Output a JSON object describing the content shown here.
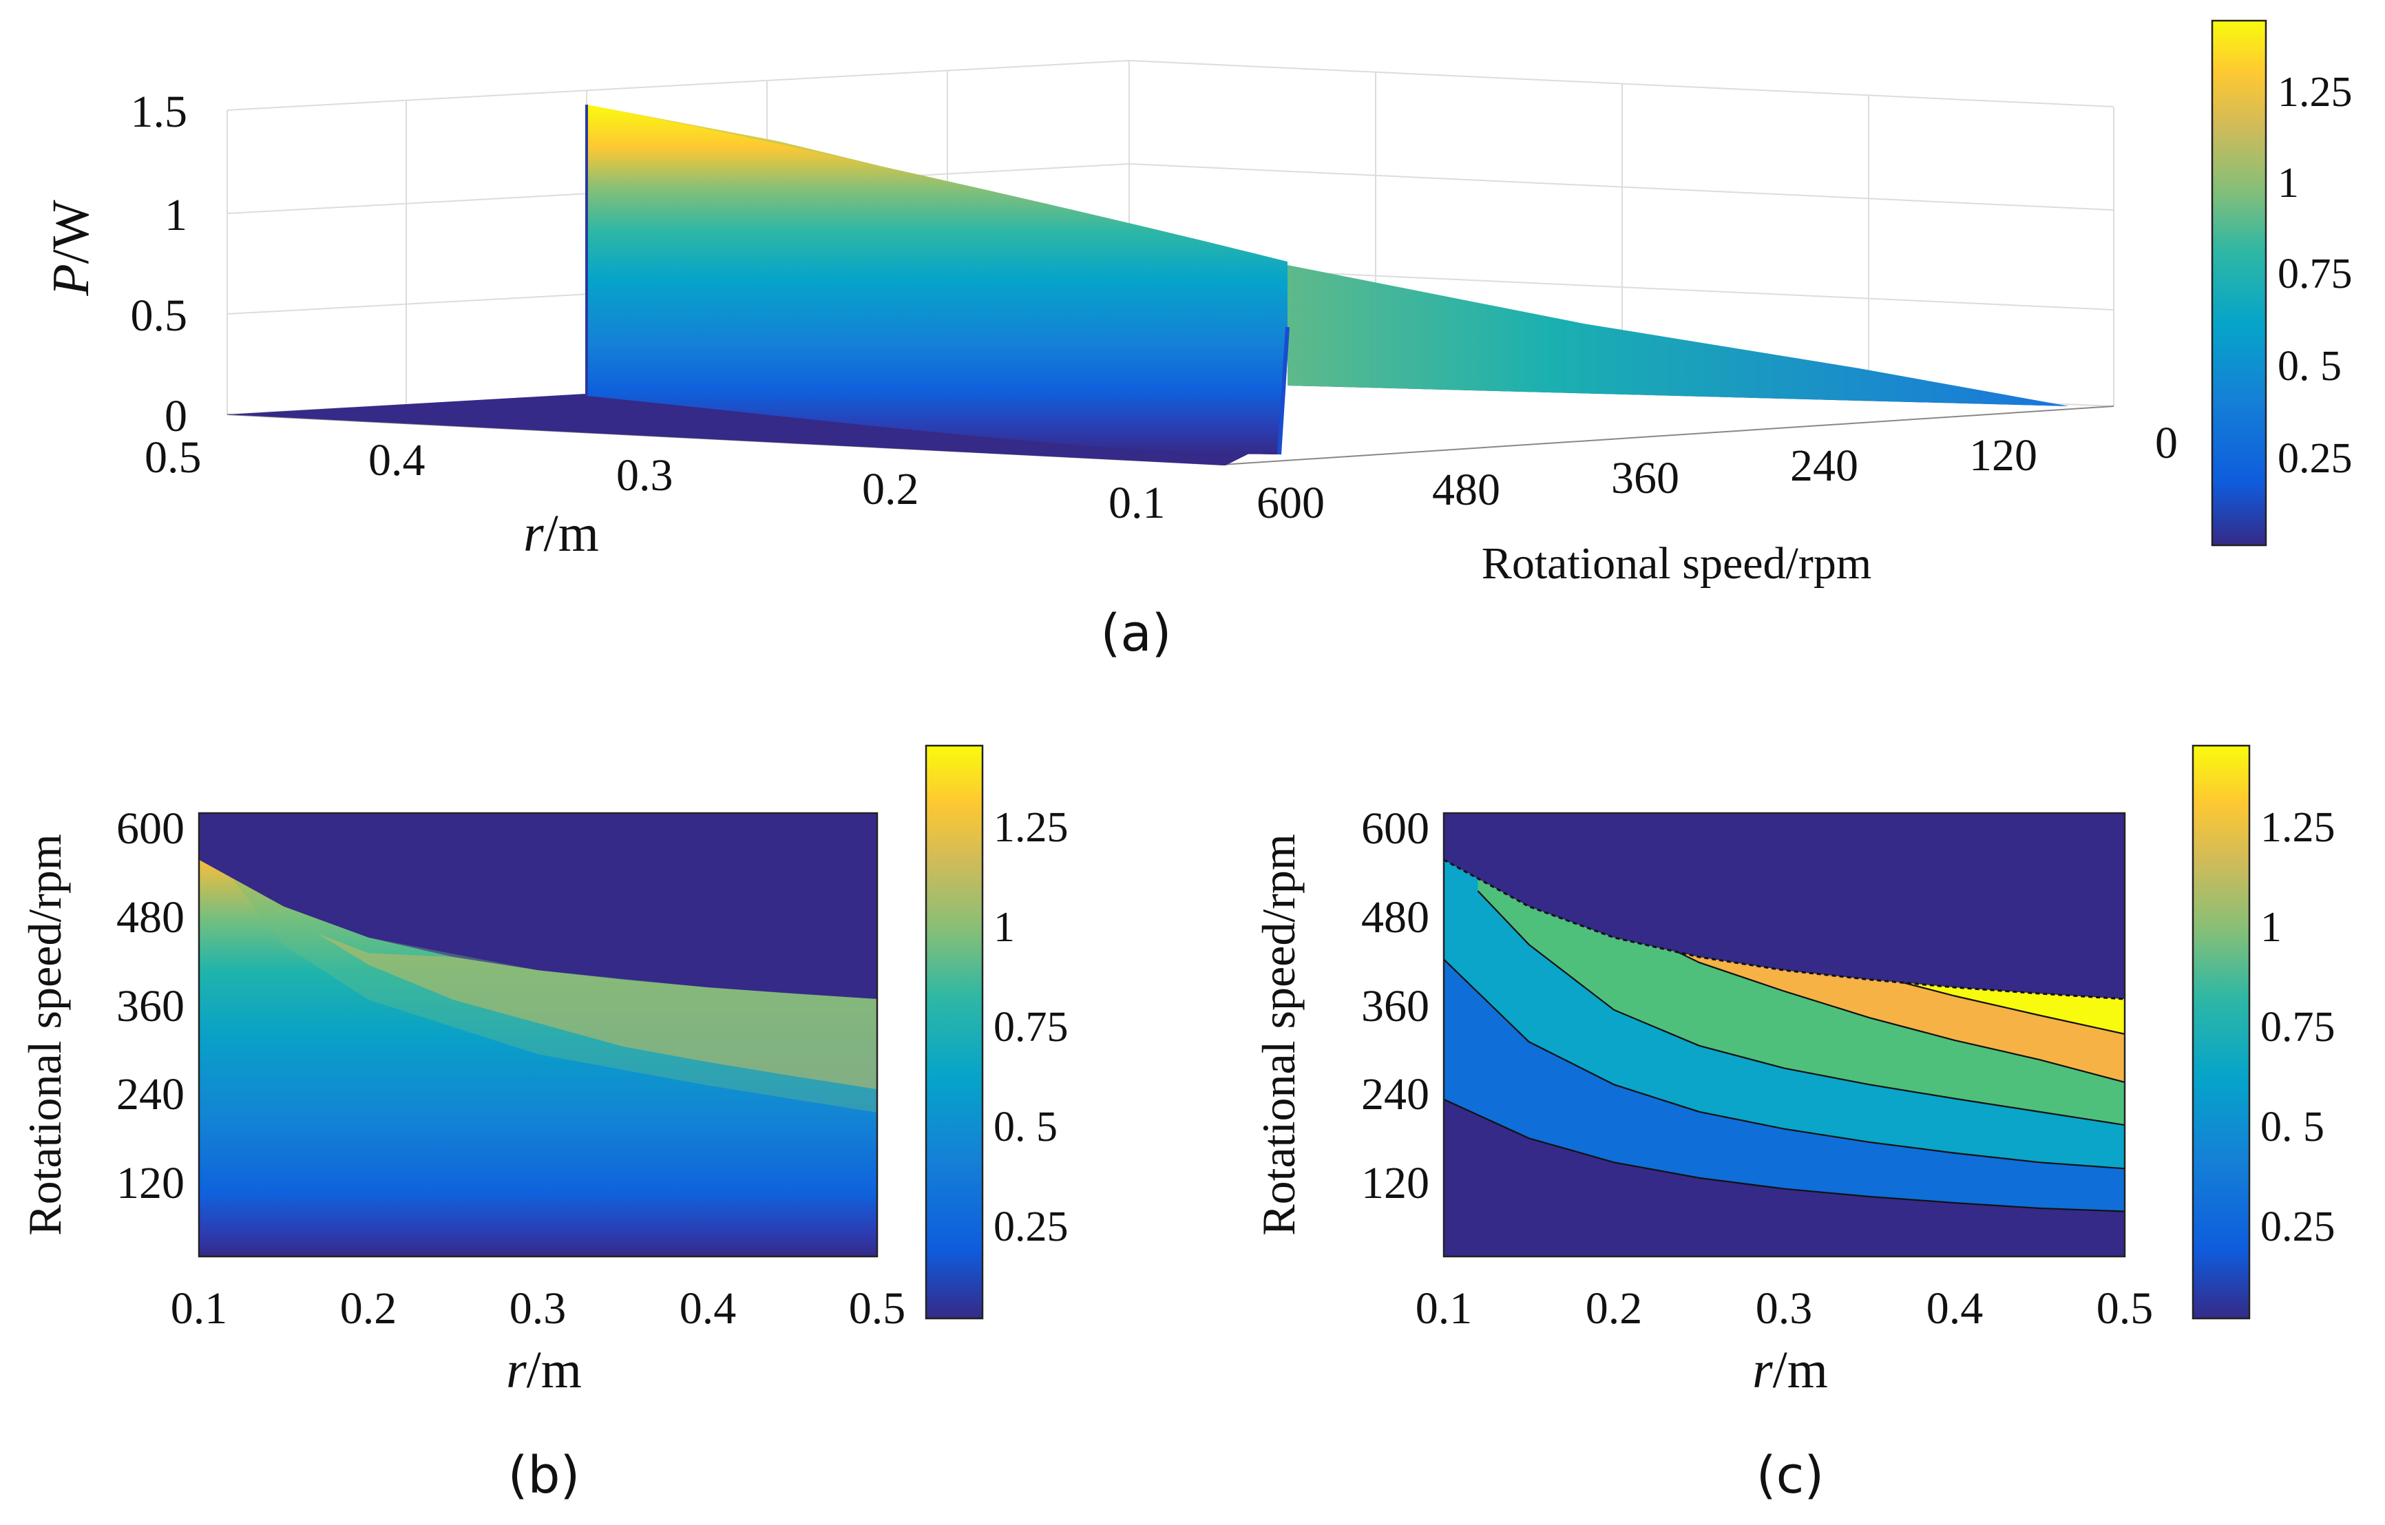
{
  "figure": {
    "panels": [
      "(a)",
      "(b)",
      "(c)"
    ]
  },
  "colors": {
    "background_region": "#352a87",
    "colormap": "parula"
  },
  "chart_data": [
    {
      "id": "a",
      "type": "surface3d",
      "panel_label": "(a)",
      "zlabel_italic": "P",
      "zlabel_unit": "/W",
      "xlabel_italic": "r",
      "xlabel_unit": "/m",
      "ylabel": "Rotational speed/rpm",
      "z_ticks": [
        "0",
        "0.5",
        "1",
        "1.5"
      ],
      "r_ticks": [
        "0.5",
        "0.4",
        "0.3",
        "0.2",
        "0.1"
      ],
      "speed_ticks": [
        "600",
        "480",
        "360",
        "240",
        "120",
        "0"
      ],
      "zlim": [
        0,
        1.5
      ],
      "rlim": [
        0.1,
        0.5
      ],
      "speedlim": [
        0,
        600
      ],
      "peak_power_W": 1.45,
      "colorbar": {
        "ticks": [
          "0.25",
          "0. 5",
          "0.75",
          "1",
          "1.25"
        ],
        "limits": [
          0,
          1.45
        ]
      }
    },
    {
      "id": "b",
      "type": "heatmap",
      "panel_label": "(b)",
      "xlabel_italic": "r",
      "xlabel_unit": "/m",
      "ylabel": "Rotational speed/rpm",
      "x_ticks": [
        "0.1",
        "0.2",
        "0.3",
        "0.4",
        "0.5"
      ],
      "y_ticks": [
        "600",
        "480",
        "360",
        "240",
        "120"
      ],
      "xlim": [
        0.1,
        0.5
      ],
      "ylim": [
        0,
        600
      ],
      "boundary_r": [
        0.1,
        0.15,
        0.2,
        0.25,
        0.3,
        0.35,
        0.4,
        0.45,
        0.5
      ],
      "boundary_speed": [
        540,
        480,
        440,
        415,
        398,
        386,
        376,
        368,
        361
      ],
      "colorbar": {
        "ticks": [
          "0.25",
          "0. 5",
          "0.75",
          "1",
          "1.25"
        ],
        "limits": [
          0,
          1.45
        ]
      }
    },
    {
      "id": "c",
      "type": "contourf",
      "panel_label": "(c)",
      "xlabel_italic": "r",
      "xlabel_unit": "/m",
      "ylabel": "Rotational speed/rpm",
      "x_ticks": [
        "0.1",
        "0.2",
        "0.3",
        "0.4",
        "0.5"
      ],
      "y_ticks": [
        "600",
        "480",
        "360",
        "240",
        "120"
      ],
      "xlim": [
        0.1,
        0.5
      ],
      "ylim": [
        0,
        600
      ],
      "levels": [
        0.25,
        0.5,
        0.75,
        1.0,
        1.25
      ],
      "level_colors": [
        "#352a87",
        "#0f6ed8",
        "#0aa5c9",
        "#4ec07c",
        "#f6b244",
        "#f9fb0e"
      ],
      "contour_lines": [
        {
          "level": 0.25,
          "r": [
            0.1,
            0.15,
            0.2,
            0.25,
            0.3,
            0.35,
            0.4,
            0.45,
            0.5
          ],
          "speed": [
            232,
            182,
            151,
            131,
            117,
            107,
            99,
            92,
            88
          ]
        },
        {
          "level": 0.5,
          "r": [
            0.1,
            0.15,
            0.2,
            0.25,
            0.3,
            0.35,
            0.4,
            0.45,
            0.5
          ],
          "speed": [
            412,
            306,
            251,
            216,
            194,
            177,
            163,
            151,
            143
          ]
        },
        {
          "level": 0.75,
          "r": [
            0.12,
            0.15,
            0.2,
            0.25,
            0.3,
            0.35,
            0.4,
            0.45,
            0.5
          ],
          "speed": [
            500,
            431,
            347,
            301,
            272,
            251,
            233,
            216,
            199
          ]
        },
        {
          "level": 1.0,
          "r": [
            0.22,
            0.25,
            0.3,
            0.35,
            0.4,
            0.45,
            0.5
          ],
          "speed": [
            440,
            408,
            371,
            337,
            308,
            283,
            254
          ]
        },
        {
          "level": 1.25,
          "r": [
            0.37,
            0.4,
            0.45,
            0.5
          ],
          "speed": [
            382,
            365,
            340,
            316
          ]
        }
      ],
      "colorbar": {
        "ticks": [
          "0.25",
          "0. 5",
          "0.75",
          "1",
          "1.25"
        ],
        "limits": [
          0,
          1.45
        ]
      }
    }
  ]
}
